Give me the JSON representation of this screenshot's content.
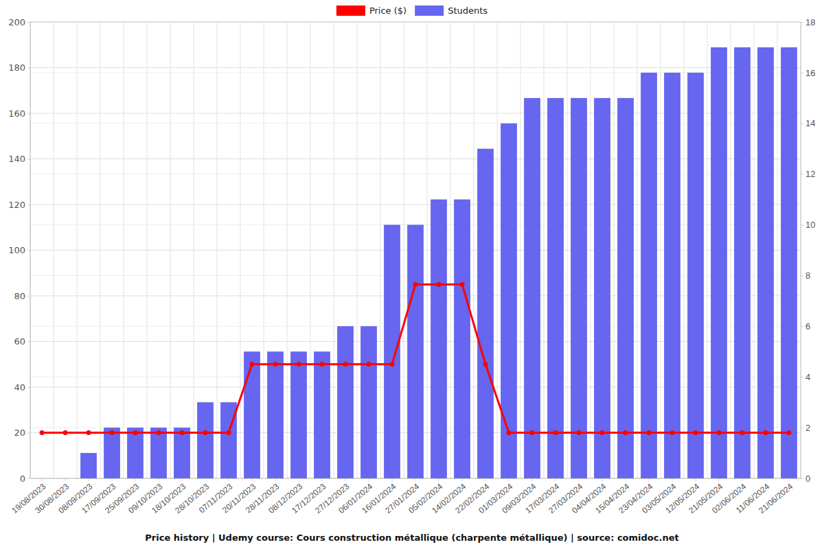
{
  "chart_data": {
    "type": "bar",
    "title": "Price history | Udemy course: Cours construction métallique (charpente métallique) | source: comidoc.net",
    "categories": [
      "19/08/2023",
      "30/08/2023",
      "08/09/2023",
      "17/09/2023",
      "25/09/2023",
      "09/10/2023",
      "18/10/2023",
      "28/10/2023",
      "07/11/2023",
      "20/11/2023",
      "28/11/2023",
      "08/12/2023",
      "17/12/2023",
      "27/12/2023",
      "06/01/2024",
      "16/01/2024",
      "27/01/2024",
      "05/02/2024",
      "14/02/2024",
      "22/02/2024",
      "01/03/2024",
      "09/03/2024",
      "17/03/2024",
      "27/03/2024",
      "04/04/2024",
      "15/04/2024",
      "23/04/2024",
      "03/05/2024",
      "12/05/2024",
      "21/05/2024",
      "02/06/2024",
      "11/06/2024",
      "21/06/2024"
    ],
    "series": [
      {
        "name": "Price ($)",
        "type": "line",
        "color": "#ff0000",
        "marker": "circle",
        "values": [
          20,
          20,
          20,
          20,
          20,
          20,
          20,
          20,
          20,
          50,
          50,
          50,
          50,
          50,
          50,
          50,
          85,
          85,
          85,
          50,
          20,
          20,
          20,
          20,
          20,
          20,
          20,
          20,
          20,
          20,
          20,
          20,
          20
        ]
      },
      {
        "name": "Students",
        "type": "bar",
        "color": "#6666f0",
        "axis": "y2",
        "values": [
          0,
          0,
          1,
          2,
          2,
          2,
          2,
          3,
          3,
          5,
          5,
          5,
          5,
          6,
          6,
          10,
          10,
          11,
          11,
          13,
          14,
          15,
          15,
          15,
          15,
          15,
          16,
          16,
          16,
          17,
          17,
          17,
          17
        ]
      }
    ],
    "ylim": [
      0,
      200
    ],
    "yticks": [
      0,
      20,
      40,
      60,
      80,
      100,
      120,
      140,
      160,
      180,
      200
    ],
    "y2lim": [
      0,
      18
    ],
    "y2ticks": [
      0,
      2,
      4,
      6,
      8,
      10,
      12,
      14,
      16,
      18
    ],
    "grid": true,
    "legend": "top"
  }
}
